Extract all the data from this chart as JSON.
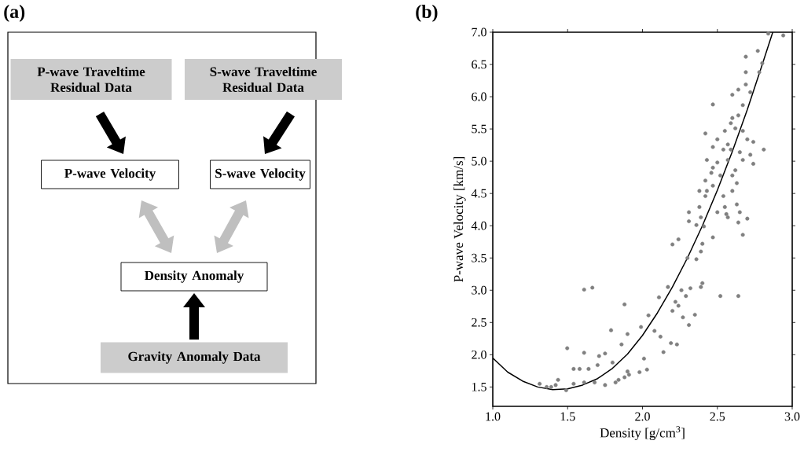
{
  "chart_data": [
    {
      "type": "other",
      "title": "(a)",
      "annotations": [
        "P-wave Traveltime Residual Data",
        "S-wave Traveltime Residual Data",
        "P-wave Velocity",
        "S-wave Velocity",
        "Density Anomaly",
        "Gravity Anomaly Data"
      ]
    },
    {
      "type": "scatter",
      "title": "(b)",
      "xlabel": "Density [g/cm$^{3}$]",
      "ylabel": "P-wave Velocity [km/s]",
      "xlim": [
        1.0,
        3.0
      ],
      "ylim": [
        1.2,
        7.0
      ],
      "xticks": [
        {
          "value": 1.0,
          "label": "1.0"
        },
        {
          "value": 1.5,
          "label": "1.5"
        },
        {
          "value": 2.0,
          "label": "2.0"
        },
        {
          "value": 2.5,
          "label": "2.5"
        },
        {
          "value": 3.0,
          "label": "3.0"
        }
      ],
      "yticks": [
        {
          "value": 1.5,
          "label": "1.5"
        },
        {
          "value": 2.0,
          "label": "2.0"
        },
        {
          "value": 2.5,
          "label": "2.5"
        },
        {
          "value": 3.0,
          "label": "3.0"
        },
        {
          "value": 3.5,
          "label": "3.5"
        },
        {
          "value": 4.0,
          "label": "4.0"
        },
        {
          "value": 4.5,
          "label": "4.5"
        },
        {
          "value": 5.0,
          "label": "5.0"
        },
        {
          "value": 5.5,
          "label": "5.5"
        },
        {
          "value": 6.0,
          "label": "6.0"
        },
        {
          "value": 6.5,
          "label": "6.5"
        },
        {
          "value": 7.0,
          "label": "7.0"
        }
      ],
      "series": [
        {
          "type": "scatter",
          "color": "#808080",
          "marker": "circle",
          "x": [
            1.313,
            1.436,
            1.497,
            1.54,
            1.58,
            1.61,
            1.61,
            1.665,
            1.79,
            1.88,
            1.9,
            1.86,
            1.71,
            1.75,
            1.8,
            1.7,
            1.64,
            1.39,
            1.36,
            1.49,
            1.42,
            1.54,
            1.61,
            1.68,
            1.75,
            1.82,
            1.88,
            1.9,
            2.03,
            1.98,
            1.91,
            1.84,
            2.01,
            1.99,
            2.04,
            2.08,
            2.12,
            2.11,
            2.17,
            2.2,
            2.19,
            2.23,
            2.14,
            2.24,
            2.27,
            2.22,
            2.26,
            2.29,
            2.32,
            2.35,
            2.31,
            2.24,
            2.2,
            2.3,
            2.36,
            2.39,
            2.4,
            2.31,
            2.36,
            2.39,
            2.52,
            2.64,
            2.64,
            2.67,
            2.47,
            2.56,
            2.4,
            2.39,
            2.41,
            2.31,
            2.38,
            2.43,
            2.42,
            2.47,
            2.46,
            2.43,
            2.47,
            2.42,
            2.5,
            2.54,
            2.57,
            2.55,
            2.59,
            2.6,
            2.64,
            2.62,
            2.67,
            2.7,
            2.74,
            2.65,
            2.67,
            2.72,
            2.74,
            2.81,
            2.62,
            2.6,
            2.63,
            2.6,
            2.63,
            2.65,
            2.7,
            2.57,
            2.5,
            2.47,
            2.6,
            2.64,
            2.69,
            2.72,
            2.67,
            2.69,
            2.78,
            2.69,
            2.77,
            2.8,
            2.84,
            2.94,
            2.55,
            2.54,
            2.52,
            2.5,
            2.57,
            2.38,
            2.42,
            2.47,
            2.59
          ],
          "values": [
            1.55,
            1.61,
            2.1,
            1.78,
            1.78,
            2.03,
            3.01,
            3.04,
            2.38,
            2.78,
            2.32,
            2.16,
            1.98,
            2.02,
            1.88,
            1.84,
            1.78,
            1.5,
            1.5,
            1.45,
            1.53,
            1.55,
            1.57,
            1.57,
            1.53,
            1.57,
            1.65,
            1.74,
            1.77,
            1.73,
            1.69,
            1.61,
            1.94,
            2.43,
            2.61,
            2.37,
            2.28,
            2.89,
            3.05,
            2.68,
            2.18,
            2.16,
            2.04,
            2.76,
            2.58,
            2.82,
            3.0,
            2.91,
            3.03,
            2.62,
            2.46,
            3.79,
            3.71,
            3.5,
            3.48,
            3.6,
            3.72,
            4.07,
            4.01,
            4.13,
            2.91,
            2.91,
            4.05,
            3.86,
            3.82,
            4.18,
            3.11,
            3.05,
            3.99,
            4.21,
            4.29,
            4.54,
            4.46,
            4.62,
            4.82,
            5.02,
            5.22,
            5.43,
            5.34,
            5.18,
            5.26,
            5.47,
            5.59,
            5.67,
            5.71,
            5.51,
            5.47,
            5.34,
            5.3,
            5.14,
            5.02,
            5.1,
            4.96,
            5.18,
            4.86,
            4.78,
            4.66,
            4.54,
            4.33,
            4.21,
            4.11,
            4.13,
            4.21,
            5.88,
            6.03,
            6.11,
            6.19,
            6.07,
            5.87,
            6.38,
            6.38,
            6.62,
            6.71,
            6.52,
            6.98,
            6.95,
            4.29,
            4.46,
            4.78,
            4.98,
            5.02,
            4.54,
            4.7,
            4.9,
            5.18
          ]
        },
        {
          "type": "line",
          "color": "#000000",
          "marker": "none",
          "x": [
            1.0,
            1.1,
            1.2,
            1.3,
            1.4,
            1.5,
            1.6,
            1.7,
            1.8,
            1.9,
            2.0,
            2.1,
            2.2,
            2.3,
            2.4,
            2.5,
            2.6,
            2.7,
            2.8,
            2.87
          ],
          "values": [
            1.95,
            1.73,
            1.59,
            1.5,
            1.46,
            1.47,
            1.53,
            1.63,
            1.79,
            2.01,
            2.3,
            2.65,
            3.05,
            3.5,
            4.0,
            4.55,
            5.15,
            5.8,
            6.5,
            7.0
          ]
        }
      ]
    }
  ]
}
